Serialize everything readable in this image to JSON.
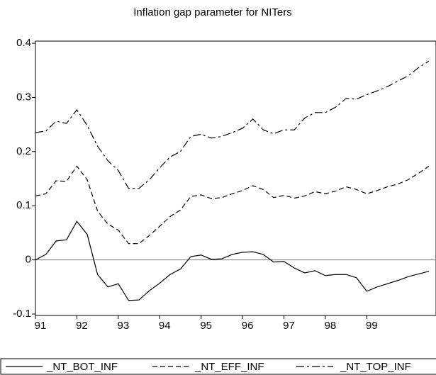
{
  "chart_data": {
    "type": "line",
    "title": "Inflation gap parameter for NITers",
    "x": [
      91,
      91.25,
      91.5,
      91.75,
      92,
      92.25,
      92.5,
      92.75,
      93,
      93.25,
      93.5,
      93.75,
      94,
      94.25,
      94.5,
      94.75,
      95,
      95.25,
      95.5,
      95.75,
      96,
      96.25,
      96.5,
      96.75,
      97,
      97.25,
      97.5,
      97.75,
      98,
      98.25,
      98.5,
      98.75,
      99,
      99.25,
      99.5,
      99.75,
      100,
      100.25,
      100.5
    ],
    "series": [
      {
        "name": "_NT_BOT_INF",
        "color": "#000000",
        "dash": "solid",
        "values": [
          0.0,
          0.01,
          0.035,
          0.037,
          0.071,
          0.047,
          -0.027,
          -0.05,
          -0.044,
          -0.075,
          -0.074,
          -0.057,
          -0.043,
          -0.027,
          -0.017,
          0.006,
          0.009,
          0.001,
          0.002,
          0.01,
          0.014,
          0.015,
          0.01,
          -0.004,
          -0.003,
          -0.015,
          -0.024,
          -0.02,
          -0.029,
          -0.027,
          -0.027,
          -0.033,
          -0.058,
          -0.05,
          -0.044,
          -0.038,
          -0.031,
          -0.026,
          -0.021
        ]
      },
      {
        "name": "_NT_EFF_INF",
        "color": "#000000",
        "dash": "dashed",
        "values": [
          0.118,
          0.122,
          0.146,
          0.145,
          0.173,
          0.148,
          0.09,
          0.066,
          0.055,
          0.03,
          0.03,
          0.045,
          0.062,
          0.08,
          0.092,
          0.117,
          0.12,
          0.113,
          0.115,
          0.122,
          0.128,
          0.137,
          0.13,
          0.115,
          0.119,
          0.114,
          0.118,
          0.126,
          0.122,
          0.127,
          0.135,
          0.13,
          0.122,
          0.128,
          0.135,
          0.14,
          0.148,
          0.16,
          0.173
        ]
      },
      {
        "name": "_NT_TOP_INF",
        "color": "#000000",
        "dash": "dashdot",
        "values": [
          0.235,
          0.238,
          0.256,
          0.252,
          0.277,
          0.248,
          0.21,
          0.183,
          0.165,
          0.132,
          0.132,
          0.148,
          0.17,
          0.19,
          0.2,
          0.228,
          0.232,
          0.225,
          0.228,
          0.235,
          0.243,
          0.26,
          0.24,
          0.233,
          0.24,
          0.24,
          0.262,
          0.272,
          0.272,
          0.282,
          0.298,
          0.297,
          0.305,
          0.312,
          0.32,
          0.33,
          0.34,
          0.355,
          0.367
        ]
      }
    ],
    "xlim": [
      91,
      100.5
    ],
    "xticks": [
      91,
      92,
      93,
      94,
      95,
      96,
      97,
      98,
      99
    ],
    "ylim": [
      -0.1,
      0.4
    ],
    "yticks": [
      -0.1,
      0.0,
      0.1,
      0.2,
      0.3,
      0.4
    ],
    "zero_line": true,
    "grid": false,
    "legend": "bottom"
  }
}
